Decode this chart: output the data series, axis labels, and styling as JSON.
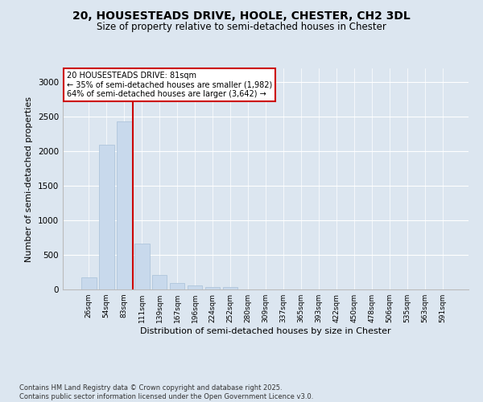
{
  "title_line1": "20, HOUSESTEADS DRIVE, HOOLE, CHESTER, CH2 3DL",
  "title_line2": "Size of property relative to semi-detached houses in Chester",
  "xlabel": "Distribution of semi-detached houses by size in Chester",
  "ylabel": "Number of semi-detached properties",
  "categories": [
    "26sqm",
    "54sqm",
    "83sqm",
    "111sqm",
    "139sqm",
    "167sqm",
    "196sqm",
    "224sqm",
    "252sqm",
    "280sqm",
    "309sqm",
    "337sqm",
    "365sqm",
    "393sqm",
    "422sqm",
    "450sqm",
    "478sqm",
    "506sqm",
    "535sqm",
    "563sqm",
    "591sqm"
  ],
  "values": [
    175,
    2100,
    2430,
    660,
    210,
    90,
    55,
    35,
    30,
    0,
    0,
    0,
    0,
    0,
    0,
    0,
    0,
    0,
    0,
    0,
    0
  ],
  "bar_color": "#c8d9ec",
  "bar_edge_color": "#a8c0d8",
  "vline_color": "#cc0000",
  "annotation_title": "20 HOUSESTEADS DRIVE: 81sqm",
  "annotation_line1": "← 35% of semi-detached houses are smaller (1,982)",
  "annotation_line2": "64% of semi-detached houses are larger (3,642) →",
  "annotation_box_edgecolor": "#cc0000",
  "ylim": [
    0,
    3200
  ],
  "yticks": [
    0,
    500,
    1000,
    1500,
    2000,
    2500,
    3000
  ],
  "bg_color": "#dce6f0",
  "footer_line1": "Contains HM Land Registry data © Crown copyright and database right 2025.",
  "footer_line2": "Contains public sector information licensed under the Open Government Licence v3.0."
}
